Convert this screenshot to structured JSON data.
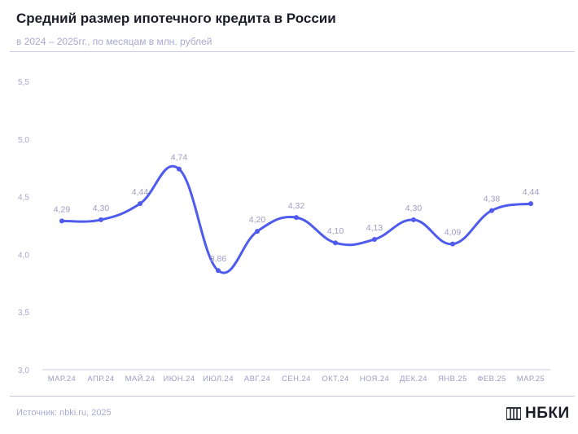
{
  "header": {
    "title": "Средний размер ипотечного кредита в России",
    "subtitle": "в 2024 – 2025гг., по месяцам в млн. рублей"
  },
  "footer": {
    "source": "Источник: nbki.ru, 2025",
    "logo_text": "НБКИ"
  },
  "colors": {
    "line": "#4f5bed",
    "axis_text": "#a8abd0",
    "rule": "#c9cbe6"
  },
  "chart_data": {
    "type": "line",
    "categories": [
      "МАР.24",
      "АПР.24",
      "МАЙ.24",
      "ИЮН.24",
      "ИЮЛ.24",
      "АВГ.24",
      "СЕН.24",
      "ОКТ.24",
      "НОЯ.24",
      "ДЕК.24",
      "ЯНВ.25",
      "ФЕВ.25",
      "МАР.25"
    ],
    "values": [
      4.29,
      4.3,
      4.44,
      4.74,
      3.86,
      4.2,
      4.32,
      4.1,
      4.13,
      4.3,
      4.09,
      4.38,
      4.44
    ],
    "data_labels": [
      "4,29",
      "4,30",
      "4,44",
      "4,74",
      "3,86",
      "4,20",
      "4,32",
      "4,10",
      "4,13",
      "4,30",
      "4,09",
      "4,38",
      "4,44"
    ],
    "y_ticks": [
      3.0,
      3.5,
      4.0,
      4.5,
      5.0,
      5.5
    ],
    "y_tick_labels": [
      "3,0",
      "3,5",
      "4,0",
      "4,5",
      "5,0",
      "5,5"
    ],
    "ylim": [
      3.0,
      5.5
    ],
    "grid": false,
    "legend": "none"
  }
}
